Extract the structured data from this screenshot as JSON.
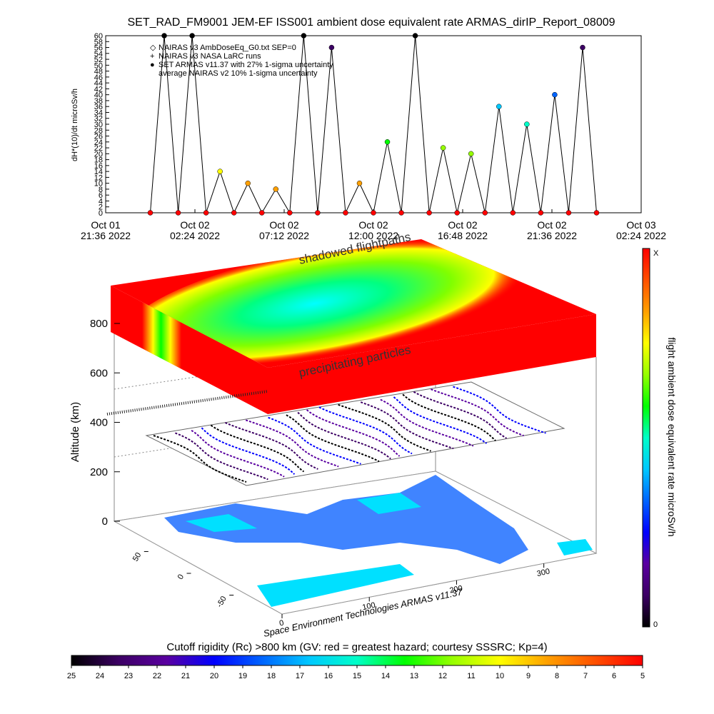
{
  "chart_data": [
    {
      "type": "line",
      "title": "SET_RAD_FM9001   JEM-EF ISS001 ambient dose equivalent rate ARMAS_dirIP_Report_08009",
      "ylabel": "dH*(10)/dt microSv/h",
      "legend": [
        "NAIRAS v3 AmbDoseEq_G0.txt SEP=0",
        "NAIRAS v3 NASA LaRC runs",
        "SET ARMAS v11.37 with 27% 1-sigma uncertainty",
        "average NAIRAS v2 10% 1-sigma uncertainty"
      ],
      "x": [
        "2022-10-02 00:00",
        "2022-10-02 00:45",
        "2022-10-02 01:30",
        "2022-10-02 02:15",
        "2022-10-02 03:00",
        "2022-10-02 03:45",
        "2022-10-02 04:30",
        "2022-10-02 05:15",
        "2022-10-02 06:00",
        "2022-10-02 06:45",
        "2022-10-02 07:30",
        "2022-10-02 08:15",
        "2022-10-02 09:00",
        "2022-10-02 09:45",
        "2022-10-02 10:30",
        "2022-10-02 11:15",
        "2022-10-02 12:00",
        "2022-10-02 12:45",
        "2022-10-02 13:30",
        "2022-10-02 14:15",
        "2022-10-02 15:00",
        "2022-10-02 15:45",
        "2022-10-02 16:30",
        "2022-10-02 17:15",
        "2022-10-02 18:00",
        "2022-10-02 18:45",
        "2022-10-02 19:30",
        "2022-10-02 20:15",
        "2022-10-02 21:00",
        "2022-10-02 21:45",
        "2022-10-02 22:30",
        "2022-10-02 23:15",
        "2022-10-03 00:00"
      ],
      "values": [
        0,
        60,
        0,
        60,
        0,
        14,
        0,
        10,
        0,
        8,
        0,
        60,
        0,
        56,
        0,
        10,
        0,
        24,
        0,
        60,
        0,
        22,
        0,
        20,
        0,
        36,
        0,
        30,
        0,
        40,
        0,
        56,
        0
      ],
      "color": "#000000",
      "xlim": [
        "2022-10-01 21:36",
        "2022-10-03 02:24"
      ],
      "xticks": [
        {
          "value": "2022-10-01 21:36",
          "label": "Oct 01\n21:36 2022"
        },
        {
          "value": "2022-10-02 02:24",
          "label": "Oct 02\n02:24 2022"
        },
        {
          "value": "2022-10-02 07:12",
          "label": "Oct 02\n07:12 2022"
        },
        {
          "value": "2022-10-02 12:00",
          "label": "Oct 02\n12:00 2022"
        },
        {
          "value": "2022-10-02 16:48",
          "label": "Oct 02\n16:48 2022"
        },
        {
          "value": "2022-10-02 21:36",
          "label": "Oct 02\n21:36 2022"
        },
        {
          "value": "2022-10-03 02:24",
          "label": "Oct 03\n02:24 2022"
        }
      ],
      "ylim": [
        0,
        60
      ],
      "yticks": [
        0,
        2,
        4,
        6,
        8,
        10,
        12,
        14,
        16,
        18,
        20,
        22,
        24,
        26,
        28,
        30,
        32,
        34,
        36,
        38,
        40,
        42,
        44,
        46,
        48,
        50,
        52,
        54,
        56,
        58,
        60
      ]
    },
    {
      "type": "surface3d",
      "annotations": [
        "shadowed flightpaths",
        "precipitating particles"
      ],
      "zlabel": "Altitude (km)",
      "zlim": [
        0,
        800
      ],
      "zticks": [
        0,
        200,
        400,
        600,
        800
      ],
      "xlim": [
        0,
        360
      ],
      "xticks": [
        0,
        100,
        200,
        300
      ],
      "ylim": [
        -90,
        90
      ],
      "yticks": [
        -50,
        0,
        50
      ],
      "credit": "Space Environment Technologies ARMAS v11.37"
    },
    {
      "type": "colorbar",
      "label": "flight ambient dose equivalent rate microSv/h",
      "labels": [
        "X",
        "0"
      ],
      "colors": [
        "#ff0000",
        "#ff5000",
        "#ffa000",
        "#ffff00",
        "#96ff00",
        "#00ff00",
        "#00ffc8",
        "#00c8ff",
        "#0064ff",
        "#0000ff",
        "#5a00a0",
        "#3c0064",
        "#000000"
      ]
    },
    {
      "type": "colorbar",
      "title": "Cutoff rigidity (Rc) >800 km (GV: red = greatest hazard; courtesy SSSRC; Kp=4)",
      "xlim": [
        25,
        5
      ],
      "xticks": [
        25,
        24,
        23,
        22,
        21,
        20,
        19,
        18,
        17,
        16,
        15,
        14,
        13,
        12,
        11,
        10,
        9,
        8,
        7,
        6,
        5
      ],
      "colors": [
        "#000000",
        "#3c0064",
        "#5a00a0",
        "#0000ff",
        "#0064ff",
        "#00c8ff",
        "#00ffc8",
        "#00ff00",
        "#96ff00",
        "#ffff00",
        "#ffa000",
        "#ff5000",
        "#ff0000"
      ]
    }
  ]
}
